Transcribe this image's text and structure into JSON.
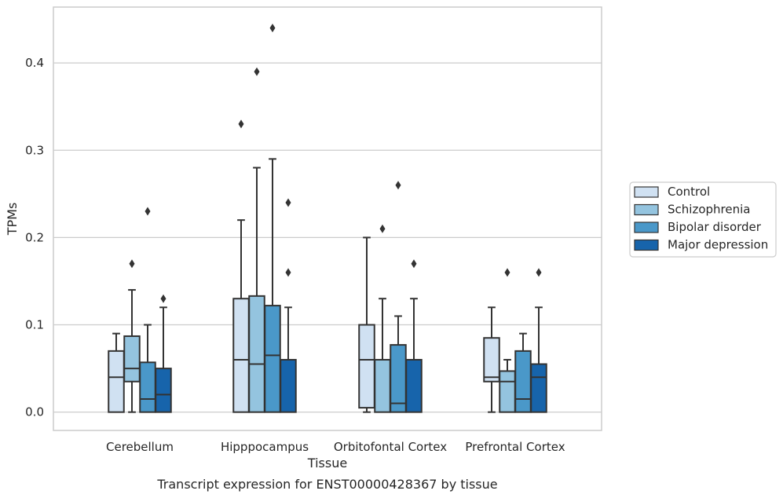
{
  "chart_data": {
    "type": "boxplot",
    "title": "",
    "caption": "Transcript expression for ENST00000428367 by tissue",
    "xlabel": "Tissue",
    "ylabel": "TPMs",
    "ylim": [
      -0.021,
      0.464
    ],
    "yticks": [
      0.0,
      0.1,
      0.2,
      0.3,
      0.4
    ],
    "ytick_labels": [
      "0.0",
      "0.1",
      "0.2",
      "0.3",
      "0.4"
    ],
    "grid": "horizontal",
    "legend_position": "right",
    "categories": [
      "Cerebellum",
      "Hipppocampus",
      "Orbitofontal Cortex",
      "Prefrontal Cortex"
    ],
    "series": [
      {
        "name": "Control",
        "color": "#d0e1f2",
        "boxes": [
          {
            "q1": 0.0,
            "median": 0.04,
            "q3": 0.07,
            "whisker_low": 0.0,
            "whisker_high": 0.09,
            "outliers": []
          },
          {
            "q1": 0.0,
            "median": 0.06,
            "q3": 0.13,
            "whisker_low": 0.0,
            "whisker_high": 0.22,
            "outliers": [
              0.33
            ]
          },
          {
            "q1": 0.005,
            "median": 0.06,
            "q3": 0.1,
            "whisker_low": 0.0,
            "whisker_high": 0.2,
            "outliers": []
          },
          {
            "q1": 0.035,
            "median": 0.04,
            "q3": 0.085,
            "whisker_low": 0.0,
            "whisker_high": 0.12,
            "outliers": []
          }
        ]
      },
      {
        "name": "Schizophrenia",
        "color": "#94c4df",
        "boxes": [
          {
            "q1": 0.035,
            "median": 0.05,
            "q3": 0.087,
            "whisker_low": 0.0,
            "whisker_high": 0.14,
            "outliers": [
              0.17
            ]
          },
          {
            "q1": 0.0,
            "median": 0.055,
            "q3": 0.133,
            "whisker_low": 0.0,
            "whisker_high": 0.28,
            "outliers": [
              0.39
            ]
          },
          {
            "q1": 0.0,
            "median": 0.06,
            "q3": 0.06,
            "whisker_low": 0.0,
            "whisker_high": 0.13,
            "outliers": [
              0.21
            ]
          },
          {
            "q1": 0.0,
            "median": 0.035,
            "q3": 0.047,
            "whisker_low": 0.0,
            "whisker_high": 0.06,
            "outliers": [
              0.16
            ]
          }
        ]
      },
      {
        "name": "Bipolar disorder",
        "color": "#4a98c9",
        "boxes": [
          {
            "q1": 0.0,
            "median": 0.015,
            "q3": 0.057,
            "whisker_low": 0.0,
            "whisker_high": 0.1,
            "outliers": [
              0.23
            ]
          },
          {
            "q1": 0.0,
            "median": 0.065,
            "q3": 0.122,
            "whisker_low": 0.0,
            "whisker_high": 0.29,
            "outliers": [
              0.44
            ]
          },
          {
            "q1": 0.0,
            "median": 0.01,
            "q3": 0.077,
            "whisker_low": 0.0,
            "whisker_high": 0.11,
            "outliers": [
              0.26
            ]
          },
          {
            "q1": 0.0,
            "median": 0.015,
            "q3": 0.07,
            "whisker_low": 0.0,
            "whisker_high": 0.09,
            "outliers": []
          }
        ]
      },
      {
        "name": "Major depression",
        "color": "#1764ab",
        "boxes": [
          {
            "q1": 0.0,
            "median": 0.02,
            "q3": 0.05,
            "whisker_low": 0.0,
            "whisker_high": 0.12,
            "outliers": [
              0.13
            ]
          },
          {
            "q1": 0.0,
            "median": 0.06,
            "q3": 0.06,
            "whisker_low": 0.0,
            "whisker_high": 0.12,
            "outliers": [
              0.16,
              0.24
            ]
          },
          {
            "q1": 0.0,
            "median": 0.06,
            "q3": 0.06,
            "whisker_low": 0.0,
            "whisker_high": 0.13,
            "outliers": [
              0.17
            ]
          },
          {
            "q1": 0.0,
            "median": 0.04,
            "q3": 0.055,
            "whisker_low": 0.0,
            "whisker_high": 0.12,
            "outliers": [
              0.16
            ]
          }
        ]
      }
    ],
    "styles": {
      "grid_color": "#cccccc",
      "frame_color": "#cccccc",
      "line_color": "#333333",
      "text_color": "#262626"
    }
  }
}
